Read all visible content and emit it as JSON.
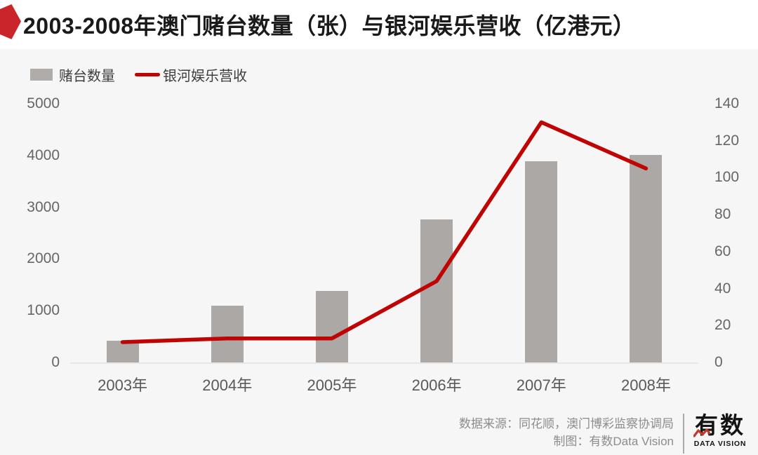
{
  "title": "2003-2008年澳门赌台数量（张）与银河娱乐营收（亿港元）",
  "chart_data": {
    "type": "bar+line",
    "title": "2003-2008年澳门赌台数量（张）与银河娱乐营收（亿港元）",
    "categories": [
      "2003年",
      "2004年",
      "2005年",
      "2006年",
      "2007年",
      "2008年"
    ],
    "series": [
      {
        "name": "赌台数量",
        "type": "bar",
        "axis": "left",
        "color": "#ACA8A6",
        "values": [
          424,
          1092,
          1388,
          2762,
          3890,
          4017
        ]
      },
      {
        "name": "银河娱乐营收",
        "type": "line",
        "axis": "right",
        "color": "#C00404",
        "values": [
          11,
          13,
          13,
          44,
          130,
          105
        ]
      }
    ],
    "left_axis": {
      "unit": "张",
      "min": 0,
      "max": 5000,
      "ticks": [
        5000,
        4000,
        3000,
        2000,
        1000,
        0
      ]
    },
    "right_axis": {
      "unit": "亿港元",
      "min": 0,
      "max": 140,
      "ticks": [
        140,
        120,
        100,
        80,
        60,
        40,
        20,
        0
      ]
    },
    "grid": false,
    "legend_position": "top-left"
  },
  "footer": {
    "source_line": "数据来源：同花顺，澳门博彩监察协调局",
    "credit_line": "制图：有数Data Vision"
  },
  "logo": {
    "name": "有数",
    "subtitle": "DATA VISION"
  },
  "colors": {
    "badge_red": "#C9252B",
    "line_red": "#C00404",
    "bar_gray": "#ACA8A6",
    "legend_swatch_gray": "#B0ACAA",
    "background": "#F6F6F6",
    "title_band": "#FFFFFF",
    "axis_label": "#666666",
    "footer_text": "#8C8C8C"
  }
}
